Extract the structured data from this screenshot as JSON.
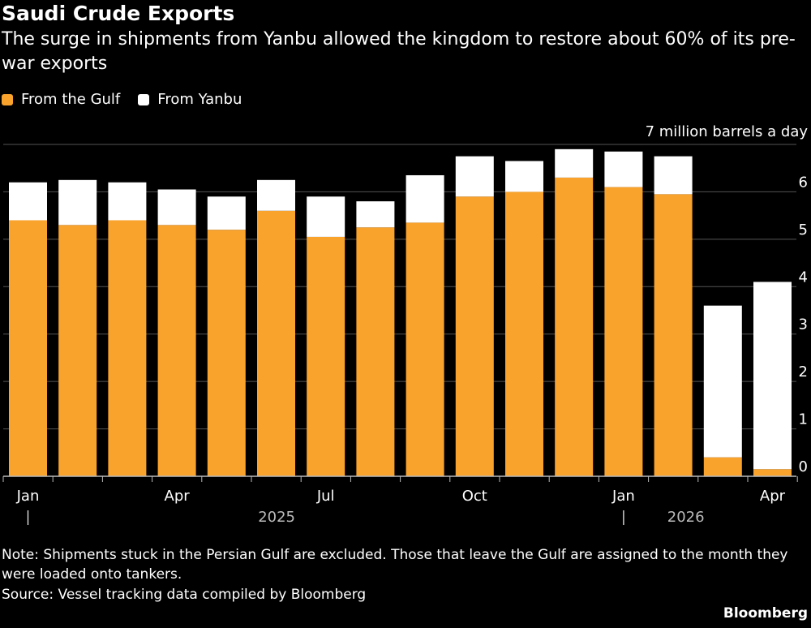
{
  "title": "Saudi Crude Exports",
  "subtitle": "The surge in shipments from Yanbu allowed the kingdom to restore about 60% of its pre-war exports",
  "note": "Note: Shipments stuck in the Persian Gulf are excluded. Those that leave the Gulf are assigned to the month they were loaded onto tankers.",
  "source": "Source: Vessel tracking data compiled by Bloomberg",
  "brand": "Bloomberg",
  "chart_data": {
    "type": "bar",
    "stacked": true,
    "categories": [
      "Jan 2025",
      "Feb 2025",
      "Mar 2025",
      "Apr 2025",
      "May 2025",
      "Jun 2025",
      "Jul 2025",
      "Aug 2025",
      "Sep 2025",
      "Oct 2025",
      "Nov 2025",
      "Dec 2025",
      "Jan 2026",
      "Feb 2026",
      "Mar 2026",
      "Apr 2026"
    ],
    "series": [
      {
        "name": "From the Gulf",
        "color": "#f9a22c",
        "values": [
          5.4,
          5.3,
          5.4,
          5.3,
          5.2,
          5.6,
          5.05,
          5.25,
          5.35,
          5.9,
          6.0,
          6.3,
          6.1,
          5.95,
          0.4,
          0.15
        ]
      },
      {
        "name": "From Yanbu",
        "color": "#ffffff",
        "values": [
          0.8,
          0.95,
          0.8,
          0.75,
          0.7,
          0.65,
          0.85,
          0.55,
          1.0,
          0.85,
          0.65,
          0.6,
          0.75,
          0.8,
          3.2,
          3.95
        ]
      }
    ],
    "ylim": [
      0,
      7
    ],
    "yticks": [
      0,
      1,
      2,
      3,
      4,
      5,
      6
    ],
    "ytick_labels": [
      "0",
      "1",
      "2",
      "3",
      "4",
      "5",
      "6"
    ],
    "top_label": "7 million barrels a day",
    "xtick_labels": [
      {
        "index": 0,
        "label": "Jan"
      },
      {
        "index": 3,
        "label": "Apr"
      },
      {
        "index": 6,
        "label": "Jul"
      },
      {
        "index": 9,
        "label": "Oct"
      },
      {
        "index": 12,
        "label": "Jan"
      },
      {
        "index": 15,
        "label": "Apr"
      }
    ],
    "year_labels": [
      {
        "label": "2025",
        "start": 0,
        "end": 11
      },
      {
        "label": "2026",
        "start": 12,
        "end": 15
      }
    ],
    "grid": true,
    "axis_side": "right",
    "legend_position": "top-left"
  }
}
